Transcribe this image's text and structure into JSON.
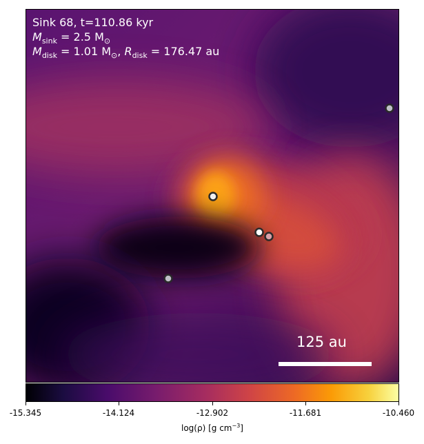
{
  "header": {
    "line1": "Sink 68, t=110.86 kyr",
    "msink_label": "M",
    "msink_sub": "sink",
    "msink_value": " = 2.5 M",
    "msink_unit_sub": "⊙",
    "mdisk_label": "M",
    "mdisk_sub": "disk",
    "mdisk_value": " = 1.01 M",
    "mdisk_unit_sub": "⊙",
    "rdisk_sep": ", ",
    "rdisk_label": "R",
    "rdisk_sub": "disk",
    "rdisk_value": " = 176.47 au"
  },
  "scale_bar": {
    "label": "125 au"
  },
  "colorbar": {
    "ticks": [
      "-15.345",
      "-14.124",
      "-12.902",
      "-11.681",
      "-10.460"
    ],
    "label_prefix": "log(ρ) [g cm",
    "label_exp": "−3",
    "label_suffix": "]",
    "colormap": "inferno"
  },
  "sinks": [
    {
      "id": "sink-central",
      "fill": "#f0f0f0"
    },
    {
      "id": "sink-mid-a",
      "fill": "#ffffff"
    },
    {
      "id": "sink-mid-b",
      "fill": "#d8a0a8"
    },
    {
      "id": "sink-lower-left",
      "fill": "#c0c0c8"
    },
    {
      "id": "sink-upper-right",
      "fill": "#c0c0c8"
    }
  ]
}
